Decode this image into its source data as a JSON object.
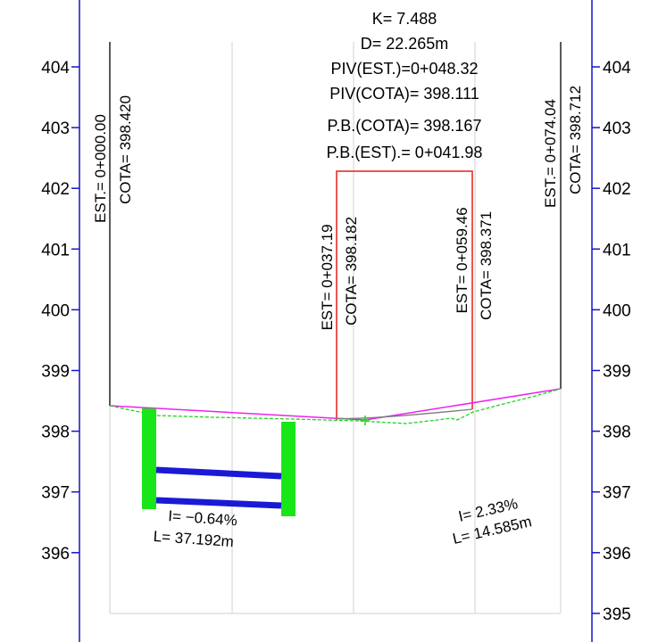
{
  "colors": {
    "frame": "#1515c8",
    "grid": "#d2d2d2",
    "terrain": "#1fd41f",
    "grade_line": "#ee22ee",
    "vertical_curve_box": "#e61e1e",
    "curve": "#7a7a7a",
    "station_line": "#000000",
    "post": "#19e619",
    "beam": "#1a1ad6"
  },
  "axis": {
    "left_ticks": [
      "404",
      "403",
      "402",
      "401",
      "400",
      "399",
      "398",
      "397",
      "396"
    ],
    "right_ticks": [
      "404",
      "403",
      "402",
      "401",
      "400",
      "399",
      "398",
      "397",
      "396",
      "395"
    ],
    "elevation_range": [
      395,
      404
    ]
  },
  "vertical_curve": {
    "k": "K= 7.488",
    "d": "D= 22.265m",
    "piv_est": "PIV(EST.)=0+048.32",
    "piv_cota": "PIV(COTA)= 398.111",
    "pb_cota": "P.B.(COTA)= 398.167",
    "pb_est": "P.B.(EST).= 0+041.98"
  },
  "stations": [
    {
      "est": "EST.= 0+000.00",
      "cota": "COTA= 398.420"
    },
    {
      "est": "EST= 0+037.19",
      "cota": "COTA= 398.182"
    },
    {
      "est": "EST= 0+059.46",
      "cota": "COTA= 398.371"
    },
    {
      "est": "EST.= 0+074.04",
      "cota": "COTA= 398.712"
    }
  ],
  "slopes": [
    {
      "i": "I= −0.64%",
      "l": "L= 37.192m"
    },
    {
      "i": "I= 2.33%",
      "l": "L= 14.585m"
    }
  ]
}
